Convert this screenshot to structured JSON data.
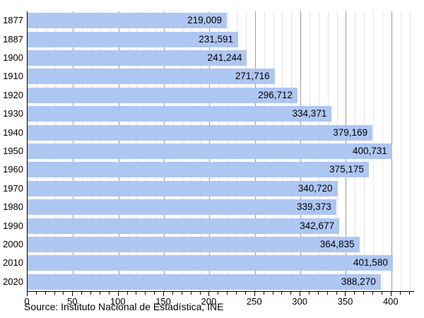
{
  "chart_data": {
    "type": "bar",
    "orientation": "horizontal",
    "title": "",
    "categories": [
      "1877",
      "1887",
      "1900",
      "1910",
      "1920",
      "1930",
      "1940",
      "1950",
      "1960",
      "1970",
      "1980",
      "1990",
      "2000",
      "2010",
      "2020"
    ],
    "values": [
      219009,
      231591,
      241244,
      271716,
      296712,
      334371,
      379169,
      400731,
      375175,
      340720,
      339373,
      342677,
      364835,
      401580,
      388270
    ],
    "value_labels": [
      "219,009",
      "231,591",
      "241,244",
      "271,716",
      "296,712",
      "334,371",
      "379,169",
      "400,731",
      "375,175",
      "340,720",
      "339,373",
      "342,677",
      "364,835",
      "401,580",
      "388,270"
    ],
    "xlabel": "",
    "ylabel": "",
    "xlim": [
      0,
      425
    ],
    "axis_unit_divisor": 1000,
    "x_tick_minor_step": 10,
    "x_tick_major_step": 50,
    "x_tick_labels": [
      "0",
      "50",
      "100",
      "150",
      "200",
      "250",
      "300",
      "350",
      "400"
    ],
    "grid": "vertical",
    "legend": "none",
    "source": "Source: Instituto Nacional de Estadística, INE",
    "colors": {
      "bar_fill": "#aec6f2",
      "grid_minor": "#e4e4e4",
      "grid_major": "#9b9b9b",
      "axis": "#000000",
      "text": "#000000",
      "background": "#ffffff"
    }
  }
}
